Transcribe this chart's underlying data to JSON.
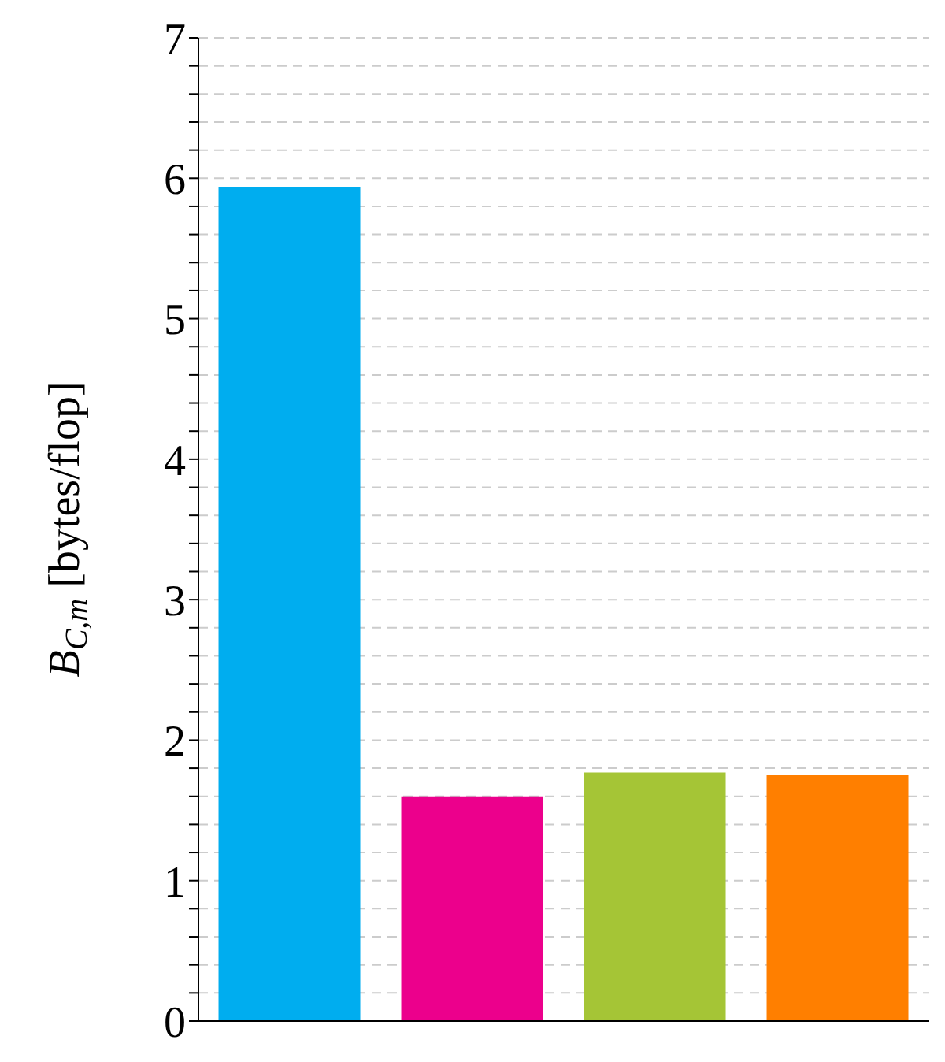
{
  "chart_data": {
    "type": "bar",
    "ylabel": "B$_{C,m}$ [bytes/flop]",
    "categories": [
      null,
      null,
      null,
      null
    ],
    "values": [
      5.94,
      1.6,
      1.77,
      1.75
    ],
    "colors": [
      "#00adef",
      "#ec008c",
      "#a5c536",
      "#ff7f00"
    ],
    "ylim": [
      0,
      7
    ],
    "yticks": [
      0,
      {
        "value": 0.2,
        "label": null
      },
      {
        "value": 0.4,
        "label": null
      },
      {
        "value": 0.6,
        "label": null
      },
      {
        "value": 0.8,
        "label": null
      },
      1,
      {
        "value": 1.2,
        "label": null
      },
      {
        "value": 1.4,
        "label": null
      },
      {
        "value": 1.6,
        "label": null
      },
      {
        "value": 1.8,
        "label": null
      },
      2,
      {
        "value": 2.2,
        "label": null
      },
      {
        "value": 2.4,
        "label": null
      },
      {
        "value": 2.6,
        "label": null
      },
      {
        "value": 2.8,
        "label": null
      },
      3,
      {
        "value": 3.2,
        "label": null
      },
      {
        "value": 3.4,
        "label": null
      },
      {
        "value": 3.6,
        "label": null
      },
      {
        "value": 3.8,
        "label": null
      },
      4,
      {
        "value": 4.2,
        "label": null
      },
      {
        "value": 4.4,
        "label": null
      },
      {
        "value": 4.6,
        "label": null
      },
      {
        "value": 4.8,
        "label": null
      },
      5,
      {
        "value": 5.2,
        "label": null
      },
      {
        "value": 5.4,
        "label": null
      },
      {
        "value": 5.6,
        "label": null
      },
      {
        "value": 5.8,
        "label": null
      },
      6,
      {
        "value": 6.2,
        "label": null
      },
      {
        "value": 6.4,
        "label": null
      },
      {
        "value": 6.6,
        "label": null
      },
      {
        "value": 6.8,
        "label": null
      },
      7
    ],
    "grid": true,
    "tick_labels": "y",
    "legend": false
  }
}
